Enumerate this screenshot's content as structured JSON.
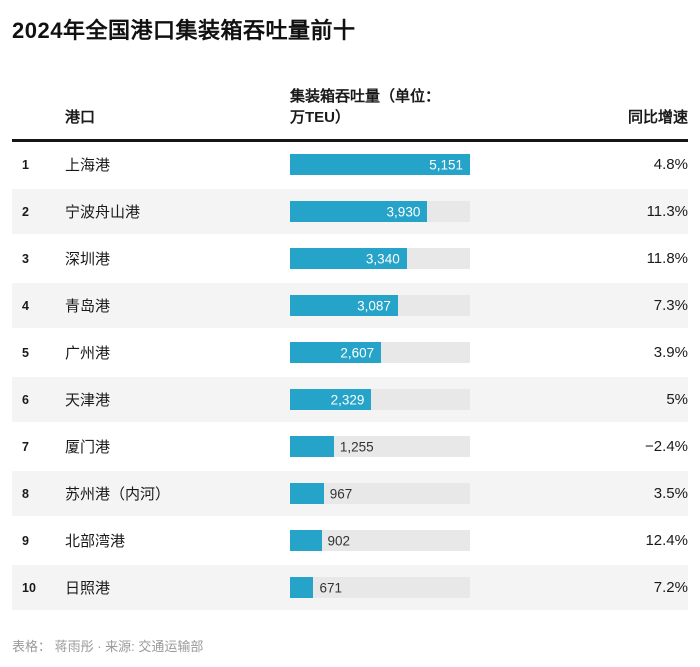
{
  "title": "2024年全国港口集装箱吞吐量前十",
  "table": {
    "header": {
      "port": "港口",
      "throughput_line1": "集装箱吞吐量（单位：",
      "throughput_line2": "万TEU）",
      "growth": "同比增速"
    },
    "accent_color": "#25a3c9",
    "track_color": "#e8e8e8",
    "row_alt_color": "#f4f4f4",
    "max_value": 5151,
    "rows": [
      {
        "rank": "1",
        "port": "上海港",
        "value": 5151,
        "value_label": "5,151",
        "growth": "4.8%"
      },
      {
        "rank": "2",
        "port": "宁波舟山港",
        "value": 3930,
        "value_label": "3,930",
        "growth": "11.3%"
      },
      {
        "rank": "3",
        "port": "深圳港",
        "value": 3340,
        "value_label": "3,340",
        "growth": "11.8%"
      },
      {
        "rank": "4",
        "port": "青岛港",
        "value": 3087,
        "value_label": "3,087",
        "growth": "7.3%"
      },
      {
        "rank": "5",
        "port": "广州港",
        "value": 2607,
        "value_label": "2,607",
        "growth": "3.9%"
      },
      {
        "rank": "6",
        "port": "天津港",
        "value": 2329,
        "value_label": "2,329",
        "growth": "5%"
      },
      {
        "rank": "7",
        "port": "厦门港",
        "value": 1255,
        "value_label": "1,255",
        "growth": "−2.4%"
      },
      {
        "rank": "8",
        "port": "苏州港（内河）",
        "value": 967,
        "value_label": "967",
        "growth": "3.5%"
      },
      {
        "rank": "9",
        "port": "北部湾港",
        "value": 902,
        "value_label": "902",
        "growth": "12.4%"
      },
      {
        "rank": "10",
        "port": "日照港",
        "value": 671,
        "value_label": "671",
        "growth": "7.2%"
      }
    ]
  },
  "footer": "表格： 蒋雨彤 · 来源: 交通运输部",
  "chart_data": {
    "type": "bar",
    "orientation": "horizontal",
    "title": "2024年全国港口集装箱吞吐量前十",
    "categories": [
      "上海港",
      "宁波舟山港",
      "深圳港",
      "青岛港",
      "广州港",
      "天津港",
      "厦门港",
      "苏州港（内河）",
      "北部湾港",
      "日照港"
    ],
    "series": [
      {
        "name": "集装箱吞吐量（单位：万TEU）",
        "values": [
          5151,
          3930,
          3340,
          3087,
          2607,
          2329,
          1255,
          967,
          902,
          671
        ]
      },
      {
        "name": "同比增速",
        "values": [
          "4.8%",
          "11.3%",
          "11.8%",
          "7.3%",
          "3.9%",
          "5%",
          "−2.4%",
          "3.5%",
          "12.4%",
          "7.2%"
        ]
      }
    ],
    "xlim": [
      0,
      5151
    ],
    "grid": false,
    "legend": false,
    "source": "交通运输部",
    "credit": "蒋雨彤"
  }
}
